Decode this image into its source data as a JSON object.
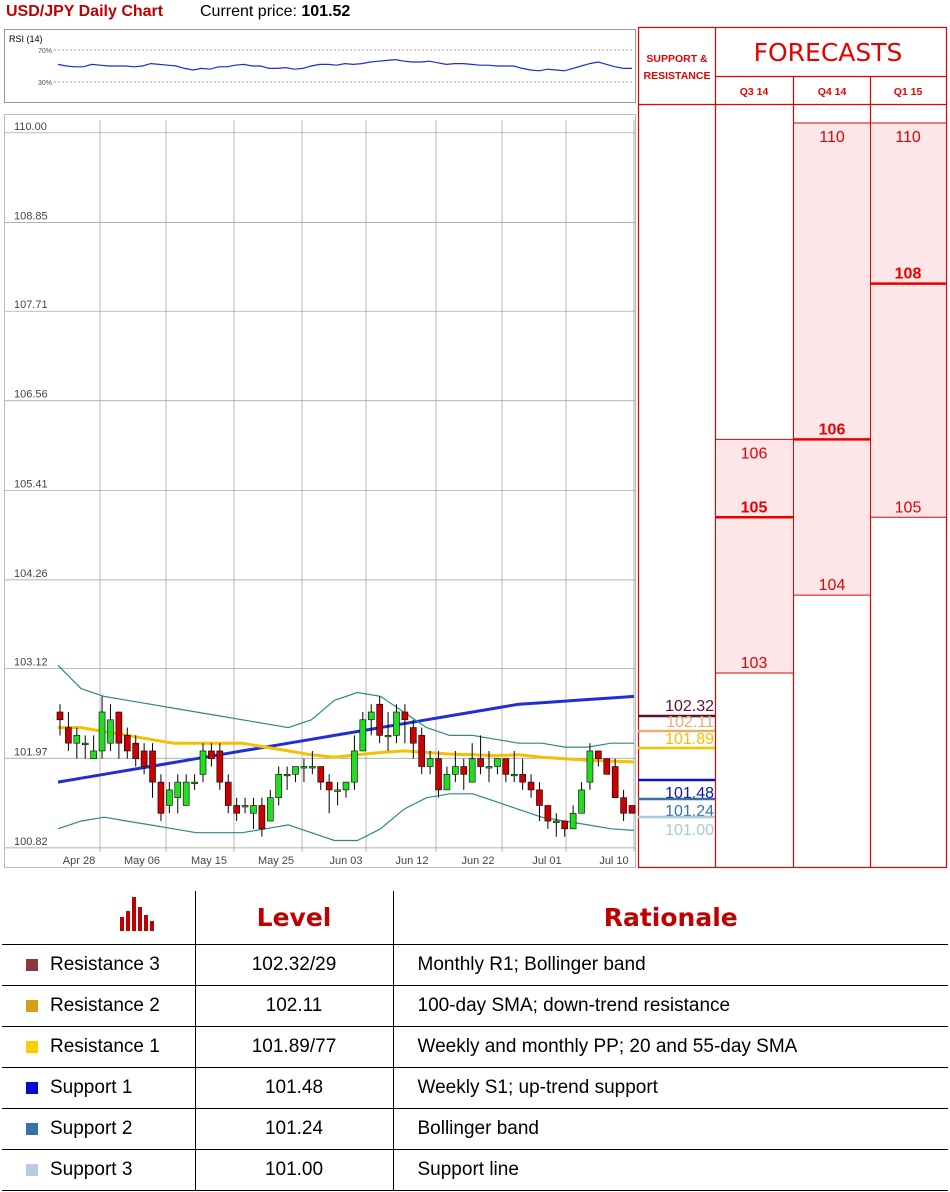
{
  "header": {
    "title": "USD/JPY Daily Chart",
    "price_label": "Current price:",
    "price_value": "101.52"
  },
  "chart_data": [
    {
      "type": "line",
      "title": "RSI (14)",
      "yticks": [
        "70%",
        "30%"
      ],
      "ylim": [
        20,
        80
      ],
      "values": [
        52,
        50,
        49,
        49,
        52,
        51,
        50,
        50,
        50,
        49,
        50,
        53,
        52,
        51,
        50,
        47,
        45,
        47,
        46,
        49,
        49,
        51,
        52,
        50,
        50,
        47,
        47,
        48,
        46,
        47,
        50,
        52,
        52,
        51,
        53,
        52,
        53,
        55,
        56,
        57,
        58,
        56,
        55,
        55,
        56,
        54,
        52,
        53,
        53,
        52,
        51,
        51,
        50,
        50,
        50,
        47,
        45,
        44,
        46,
        45,
        44,
        47,
        50,
        53,
        55,
        52,
        49,
        47,
        47
      ]
    },
    {
      "type": "candlestick",
      "ylim": [
        100.6,
        110.1
      ],
      "yticks": [
        "110.00",
        "108.85",
        "107.71",
        "106.56",
        "105.41",
        "104.26",
        "103.12",
        "101.97",
        "100.82"
      ],
      "ytick_values": [
        110.0,
        108.85,
        107.71,
        106.56,
        105.41,
        104.26,
        103.12,
        101.97,
        100.82
      ],
      "xticks": [
        "Apr 28",
        "May 06",
        "May 15",
        "May 25",
        "Jun 03",
        "Jun 12",
        "Jun 22",
        "Jul 01",
        "Jul 10"
      ],
      "candles": [
        [
          102.5,
          102.4,
          102.6,
          102.2
        ],
        [
          102.3,
          102.1,
          102.5,
          102.0
        ],
        [
          102.1,
          102.2,
          102.3,
          101.9
        ],
        [
          102.1,
          102.1,
          102.2,
          101.9
        ],
        [
          101.9,
          102.0,
          102.2,
          101.9
        ],
        [
          102.0,
          102.5,
          102.7,
          101.9
        ],
        [
          102.1,
          102.4,
          102.6,
          102.0
        ],
        [
          102.5,
          102.1,
          102.5,
          101.9
        ],
        [
          102.2,
          102.0,
          102.3,
          101.9
        ],
        [
          102.1,
          101.9,
          102.2,
          101.8
        ],
        [
          102.0,
          101.8,
          102.1,
          101.7
        ],
        [
          102.0,
          101.6,
          102.1,
          101.4
        ],
        [
          101.6,
          101.2,
          101.7,
          101.1
        ],
        [
          101.3,
          101.5,
          101.6,
          101.2
        ],
        [
          101.4,
          101.6,
          101.7,
          101.2
        ],
        [
          101.3,
          101.6,
          101.7,
          101.3
        ],
        [
          101.6,
          101.6,
          101.7,
          101.5
        ],
        [
          101.7,
          102.0,
          102.1,
          101.6
        ],
        [
          102.0,
          101.9,
          102.1,
          101.8
        ],
        [
          102.0,
          101.6,
          102.1,
          101.5
        ],
        [
          101.6,
          101.3,
          101.7,
          101.2
        ],
        [
          101.3,
          101.2,
          101.4,
          101.1
        ],
        [
          101.3,
          101.3,
          101.4,
          101.2
        ],
        [
          101.2,
          101.3,
          101.4,
          101.0
        ],
        [
          101.3,
          101.0,
          101.4,
          100.9
        ],
        [
          101.1,
          101.4,
          101.5,
          101.1
        ],
        [
          101.4,
          101.7,
          101.8,
          101.3
        ],
        [
          101.7,
          101.7,
          101.8,
          101.5
        ],
        [
          101.7,
          101.8,
          101.8,
          101.6
        ],
        [
          101.8,
          101.8,
          101.9,
          101.6
        ],
        [
          101.8,
          101.8,
          102.0,
          101.7
        ],
        [
          101.8,
          101.6,
          101.8,
          101.5
        ],
        [
          101.6,
          101.5,
          101.7,
          101.2
        ],
        [
          101.5,
          101.5,
          101.6,
          101.3
        ],
        [
          101.5,
          101.6,
          101.6,
          101.4
        ],
        [
          101.6,
          102.0,
          102.2,
          101.5
        ],
        [
          102.0,
          102.4,
          102.5,
          102.0
        ],
        [
          102.4,
          102.5,
          102.6,
          102.2
        ],
        [
          102.6,
          102.2,
          102.7,
          102.1
        ],
        [
          102.2,
          102.2,
          102.5,
          102.0
        ],
        [
          102.2,
          102.5,
          102.6,
          102.1
        ],
        [
          102.5,
          102.4,
          102.6,
          102.1
        ],
        [
          102.3,
          102.1,
          102.4,
          101.9
        ],
        [
          102.2,
          101.8,
          102.3,
          101.7
        ],
        [
          101.8,
          101.9,
          102.0,
          101.7
        ],
        [
          101.9,
          101.5,
          102.0,
          101.4
        ],
        [
          101.5,
          101.7,
          101.8,
          101.5
        ],
        [
          101.7,
          101.8,
          102.0,
          101.6
        ],
        [
          101.8,
          101.7,
          101.9,
          101.5
        ],
        [
          101.6,
          101.9,
          102.1,
          101.6
        ],
        [
          101.9,
          101.8,
          102.2,
          101.7
        ],
        [
          101.8,
          101.8,
          102.0,
          101.6
        ],
        [
          101.8,
          101.9,
          101.9,
          101.7
        ],
        [
          101.9,
          101.7,
          101.9,
          101.6
        ],
        [
          101.7,
          101.7,
          102.0,
          101.6
        ],
        [
          101.7,
          101.6,
          101.9,
          101.5
        ],
        [
          101.6,
          101.5,
          101.7,
          101.4
        ],
        [
          101.5,
          101.3,
          101.6,
          101.1
        ],
        [
          101.3,
          101.1,
          101.3,
          101.0
        ],
        [
          101.1,
          101.1,
          101.2,
          100.9
        ],
        [
          101.1,
          101.0,
          101.1,
          100.9
        ],
        [
          101.0,
          101.2,
          101.3,
          101.0
        ],
        [
          101.2,
          101.5,
          101.6,
          101.2
        ],
        [
          101.6,
          102.0,
          102.1,
          101.5
        ],
        [
          102.0,
          101.9,
          102.0,
          101.8
        ],
        [
          101.9,
          101.7,
          101.9,
          101.7
        ],
        [
          101.8,
          101.4,
          101.9,
          101.4
        ],
        [
          101.4,
          101.2,
          101.5,
          101.1
        ],
        [
          101.3,
          101.2,
          101.3,
          101.2
        ]
      ],
      "series": [
        {
          "name": "",
          "color": "#1f2fd6",
          "values": [
            101.6,
            101.65,
            101.7,
            101.75,
            101.8,
            101.85,
            101.9,
            101.95,
            102.0,
            102.05,
            102.1,
            102.15,
            102.2,
            102.25,
            102.3,
            102.35,
            102.4,
            102.45,
            102.5,
            102.55,
            102.6,
            102.62,
            102.64,
            102.66,
            102.68,
            102.7
          ]
        },
        {
          "name": "",
          "color": "#f5c000",
          "values": [
            102.3,
            102.3,
            102.25,
            102.2,
            102.15,
            102.1,
            102.1,
            102.1,
            102.1,
            102.05,
            102.0,
            101.95,
            101.92,
            101.95,
            101.98,
            102.0,
            101.98,
            101.96,
            101.95,
            101.94,
            101.95,
            101.92,
            101.9,
            101.88,
            101.87,
            101.86
          ]
        },
        {
          "name": "",
          "color": "#2a8a8a",
          "values": [
            103.1,
            102.8,
            102.7,
            102.65,
            102.6,
            102.55,
            102.5,
            102.45,
            102.4,
            102.35,
            102.3,
            102.4,
            102.65,
            102.75,
            102.7,
            102.5,
            102.3,
            102.2,
            102.2,
            102.15,
            102.1,
            102.1,
            102.05,
            102.05,
            102.1,
            102.1
          ]
        },
        {
          "name": "",
          "color": "#2a8a8a",
          "values": [
            101.0,
            101.1,
            101.15,
            101.1,
            101.05,
            101.0,
            100.95,
            100.95,
            100.95,
            101.0,
            101.05,
            100.95,
            100.85,
            100.85,
            101.0,
            101.25,
            101.4,
            101.45,
            101.45,
            101.35,
            101.25,
            101.15,
            101.1,
            101.05,
            101.0,
            100.98
          ]
        }
      ],
      "levels": [
        {
          "label": "102.32",
          "value": 102.32,
          "color": "#5c1030"
        },
        {
          "label": "102.11",
          "value": 102.11,
          "color": "#e3b070"
        },
        {
          "label": "101.89",
          "value": 101.89,
          "color": "#f5c000"
        },
        {
          "label": "101.48",
          "value": 101.48,
          "color": "#0b16b8"
        },
        {
          "label": "101.24",
          "value": 101.24,
          "color": "#3a6fa8"
        },
        {
          "label": "101.00",
          "value": 101.0,
          "color": "#a6ccd8"
        }
      ]
    },
    {
      "type": "range",
      "title": "FORECASTS",
      "header": "SUPPORT & RESISTANCE",
      "accent": "#e60000",
      "ylim": [
        100.6,
        110.1
      ],
      "columns": [
        {
          "label": "Q3 14",
          "low": 103,
          "mid": 105,
          "high": 106
        },
        {
          "label": "Q4 14",
          "low": 104,
          "mid": 106,
          "high": 110
        },
        {
          "label": "Q1 15",
          "low": 105,
          "mid": 108,
          "high": 110
        }
      ]
    }
  ],
  "table": {
    "headers": [
      "Level",
      "Rationale"
    ],
    "rows": [
      {
        "name": "Resistance 3",
        "level": "102.32/29",
        "rationale": "Monthly R1; Bollinger band",
        "color": "#8b3a3a"
      },
      {
        "name": "Resistance 2",
        "level": "102.11",
        "rationale": "100-day SMA; down-trend resistance",
        "color": "#d4a017"
      },
      {
        "name": "Resistance 1",
        "level": "101.89/77",
        "rationale": "Weekly and monthly PP; 20 and 55-day SMA",
        "color": "#ffcc00"
      },
      {
        "name": "Support 1",
        "level": "101.48",
        "rationale": "Weekly S1; up-trend support",
        "color": "#0010d0"
      },
      {
        "name": "Support 2",
        "level": "101.24",
        "rationale": "Bollinger band",
        "color": "#3a6fb0"
      },
      {
        "name": "Support 3",
        "level": "101.00",
        "rationale": "Support line",
        "color": "#b8cce8"
      }
    ]
  }
}
